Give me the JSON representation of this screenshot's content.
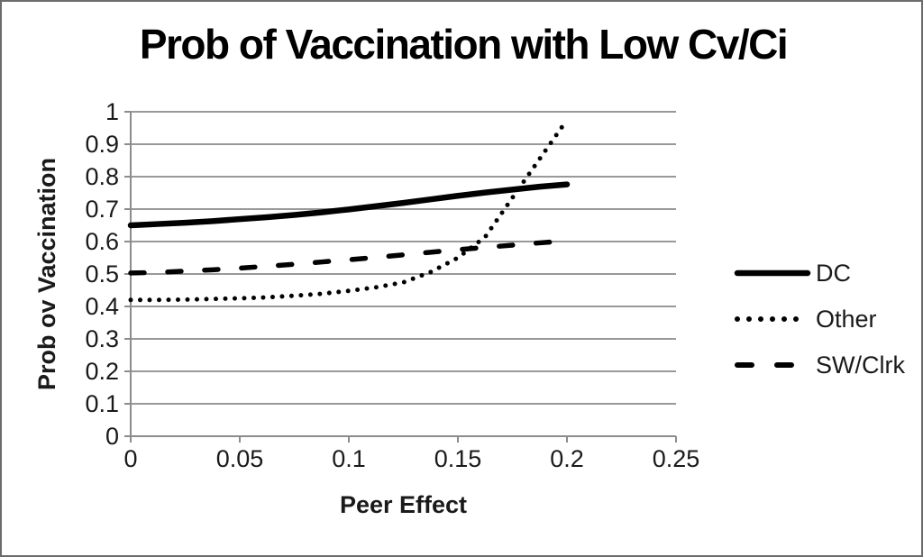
{
  "chart_data": {
    "type": "line",
    "title": "Prob of Vaccination with Low Cv/Ci",
    "xlabel": "Peer Effect",
    "ylabel": "Prob ov Vaccination",
    "xlim": [
      0,
      0.25
    ],
    "ylim": [
      0,
      1
    ],
    "grid": true,
    "legend_position": "right-center",
    "x_ticks": [
      0,
      0.05,
      0.1,
      0.15,
      0.2,
      0.25
    ],
    "x_tick_labels": [
      "0",
      "0.05",
      "0.1",
      "0.15",
      "0.2",
      "0.25"
    ],
    "y_ticks": [
      0,
      0.1,
      0.2,
      0.3,
      0.4,
      0.5,
      0.6,
      0.7,
      0.8,
      0.9,
      1
    ],
    "y_tick_labels": [
      "0",
      "0.1",
      "0.2",
      "0.3",
      "0.4",
      "0.5",
      "0.6",
      "0.7",
      "0.8",
      "0.9",
      "1"
    ],
    "x": [
      0,
      0.0125,
      0.025,
      0.0375,
      0.05,
      0.0625,
      0.075,
      0.0875,
      0.1,
      0.1125,
      0.125,
      0.1375,
      0.15,
      0.1625,
      0.175,
      0.1875,
      0.2
    ],
    "series": [
      {
        "name": "DC",
        "style": "solid",
        "values": [
          0.65,
          0.654,
          0.658,
          0.663,
          0.669,
          0.675,
          0.682,
          0.69,
          0.699,
          0.709,
          0.719,
          0.73,
          0.741,
          0.751,
          0.76,
          0.769,
          0.776
        ]
      },
      {
        "name": "Other",
        "style": "dotted",
        "values": [
          0.42,
          0.42,
          0.421,
          0.423,
          0.425,
          0.428,
          0.433,
          0.439,
          0.448,
          0.459,
          0.474,
          0.506,
          0.55,
          0.614,
          0.735,
          0.855,
          0.975
        ]
      },
      {
        "name": "SW/Clrk",
        "style": "dashed",
        "values": [
          0.503,
          0.505,
          0.509,
          0.513,
          0.518,
          0.524,
          0.53,
          0.537,
          0.544,
          0.551,
          0.559,
          0.567,
          0.575,
          0.582,
          0.589,
          0.596,
          0.602
        ]
      }
    ],
    "legend_entries": [
      "DC",
      "Other",
      "SW/Clrk"
    ],
    "colors": {
      "series": "#000000",
      "grid": "#999999",
      "axis": "#8c8c8c",
      "text": "#1a1a1a",
      "background": "#ffffff",
      "border": "#6b6b6b"
    }
  }
}
